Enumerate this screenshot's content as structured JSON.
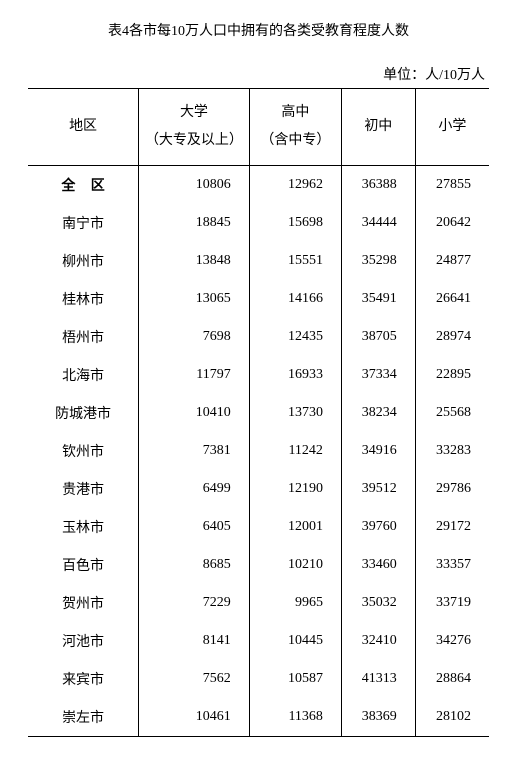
{
  "title": "表4各市每10万人口中拥有的各类受教育程度人数",
  "unit": "单位：人/10万人",
  "columns": {
    "region": "地区",
    "university": "大学",
    "university_sub": "（大专及以上）",
    "highschool": "高中",
    "highschool_sub": "（含中专）",
    "middleschool": "初中",
    "primary": "小学"
  },
  "rows": [
    {
      "region": "全 区",
      "bold": true,
      "university": "10806",
      "highschool": "12962",
      "middleschool": "36388",
      "primary": "27855"
    },
    {
      "region": "南宁市",
      "bold": false,
      "university": "18845",
      "highschool": "15698",
      "middleschool": "34444",
      "primary": "20642"
    },
    {
      "region": "柳州市",
      "bold": false,
      "university": "13848",
      "highschool": "15551",
      "middleschool": "35298",
      "primary": "24877"
    },
    {
      "region": "桂林市",
      "bold": false,
      "university": "13065",
      "highschool": "14166",
      "middleschool": "35491",
      "primary": "26641"
    },
    {
      "region": "梧州市",
      "bold": false,
      "university": "7698",
      "highschool": "12435",
      "middleschool": "38705",
      "primary": "28974"
    },
    {
      "region": "北海市",
      "bold": false,
      "university": "11797",
      "highschool": "16933",
      "middleschool": "37334",
      "primary": "22895"
    },
    {
      "region": "防城港市",
      "bold": false,
      "university": "10410",
      "highschool": "13730",
      "middleschool": "38234",
      "primary": "25568"
    },
    {
      "region": "钦州市",
      "bold": false,
      "university": "7381",
      "highschool": "11242",
      "middleschool": "34916",
      "primary": "33283"
    },
    {
      "region": "贵港市",
      "bold": false,
      "university": "6499",
      "highschool": "12190",
      "middleschool": "39512",
      "primary": "29786"
    },
    {
      "region": "玉林市",
      "bold": false,
      "university": "6405",
      "highschool": "12001",
      "middleschool": "39760",
      "primary": "29172"
    },
    {
      "region": "百色市",
      "bold": false,
      "university": "8685",
      "highschool": "10210",
      "middleschool": "33460",
      "primary": "33357"
    },
    {
      "region": "贺州市",
      "bold": false,
      "university": "7229",
      "highschool": "9965",
      "middleschool": "35032",
      "primary": "33719"
    },
    {
      "region": "河池市",
      "bold": false,
      "university": "8141",
      "highschool": "10445",
      "middleschool": "32410",
      "primary": "34276"
    },
    {
      "region": "来宾市",
      "bold": false,
      "university": "7562",
      "highschool": "10587",
      "middleschool": "41313",
      "primary": "28864"
    },
    {
      "region": "崇左市",
      "bold": false,
      "university": "10461",
      "highschool": "11368",
      "middleschool": "38369",
      "primary": "28102"
    }
  ],
  "styling": {
    "background_color": "#ffffff",
    "text_color": "#000000",
    "border_color": "#000000",
    "font_family": "SimSun",
    "title_fontsize": 14,
    "body_fontsize": 14,
    "top_border_width": 1.5,
    "inner_border_width": 1.0
  }
}
